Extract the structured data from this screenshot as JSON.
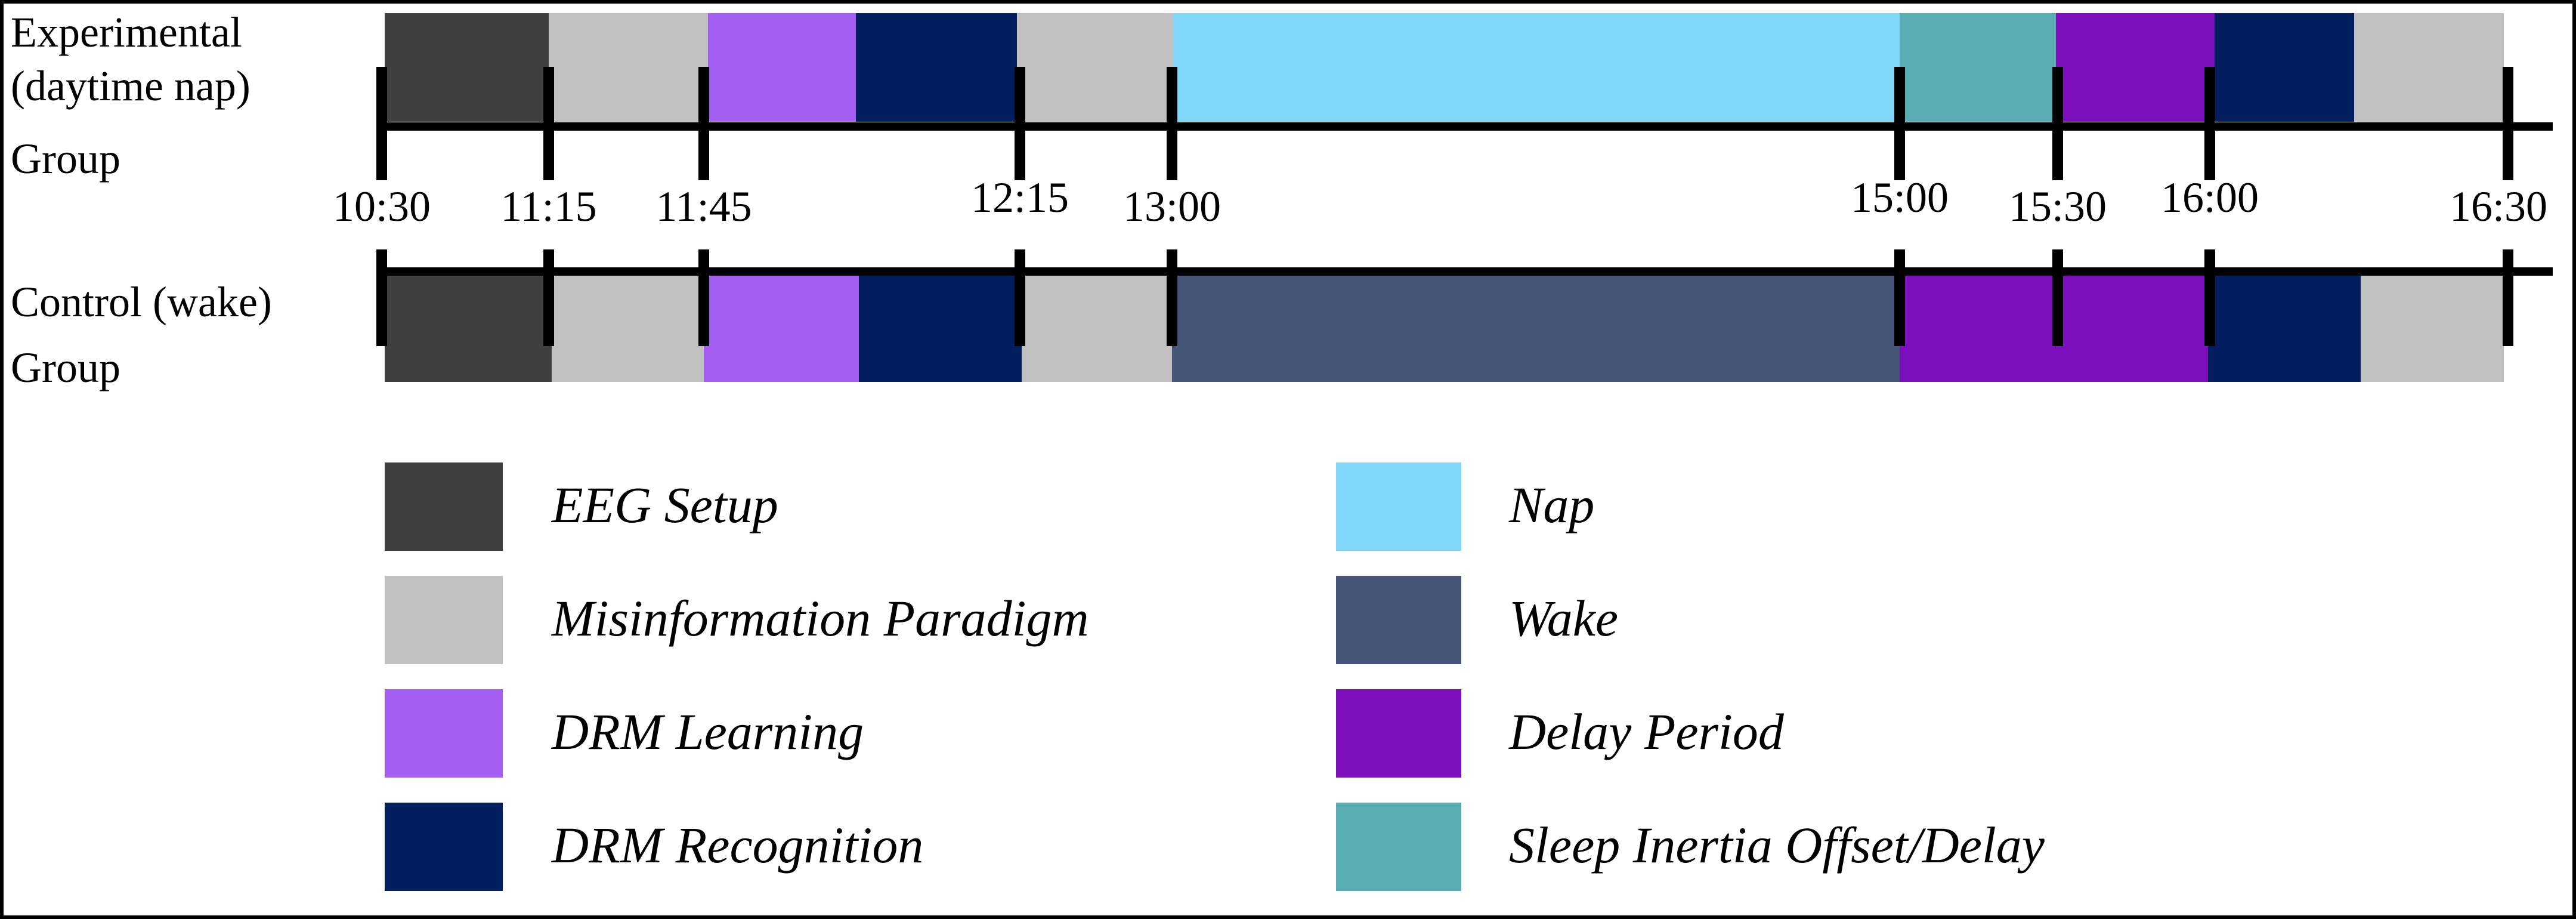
{
  "groups": [
    {
      "label_lines": [
        "Experimental",
        "(daytime nap)",
        "Group"
      ]
    },
    {
      "label_lines": [
        "Control (wake)",
        "Group"
      ]
    }
  ],
  "time_ticks": [
    "10:30",
    "11:15",
    "11:45",
    "12:15",
    "13:00",
    "15:00",
    "15:30",
    "16:00",
    "16:30"
  ],
  "legend": [
    {
      "key": "eeg",
      "label": "EEG Setup",
      "color": "#404040"
    },
    {
      "key": "misinfo",
      "label": "Misinformation Paradigm",
      "color": "#c0c0c0"
    },
    {
      "key": "learning",
      "label": "DRM Learning",
      "color": "#a45ef2"
    },
    {
      "key": "recog",
      "label": "DRM Recognition",
      "color": "#021e5e"
    },
    {
      "key": "nap",
      "label": "Nap",
      "color": "#7fd6f7"
    },
    {
      "key": "wake",
      "label": "Wake",
      "color": "#455578"
    },
    {
      "key": "delay",
      "label": "Delay Period",
      "color": "#7a0fbb"
    },
    {
      "key": "inertia",
      "label": "Sleep Inertia Offset/Delay",
      "color": "#58adb3"
    }
  ],
  "experimental_segments": [
    "eeg",
    "misinfo",
    "learning",
    "recog",
    "misinfo",
    "nap",
    "inertia",
    "delay",
    "recog",
    "misinfo"
  ],
  "control_segments": [
    "eeg",
    "misinfo",
    "learning",
    "recog",
    "misinfo",
    "wake",
    "delay",
    "delay",
    "recog",
    "misinfo"
  ]
}
